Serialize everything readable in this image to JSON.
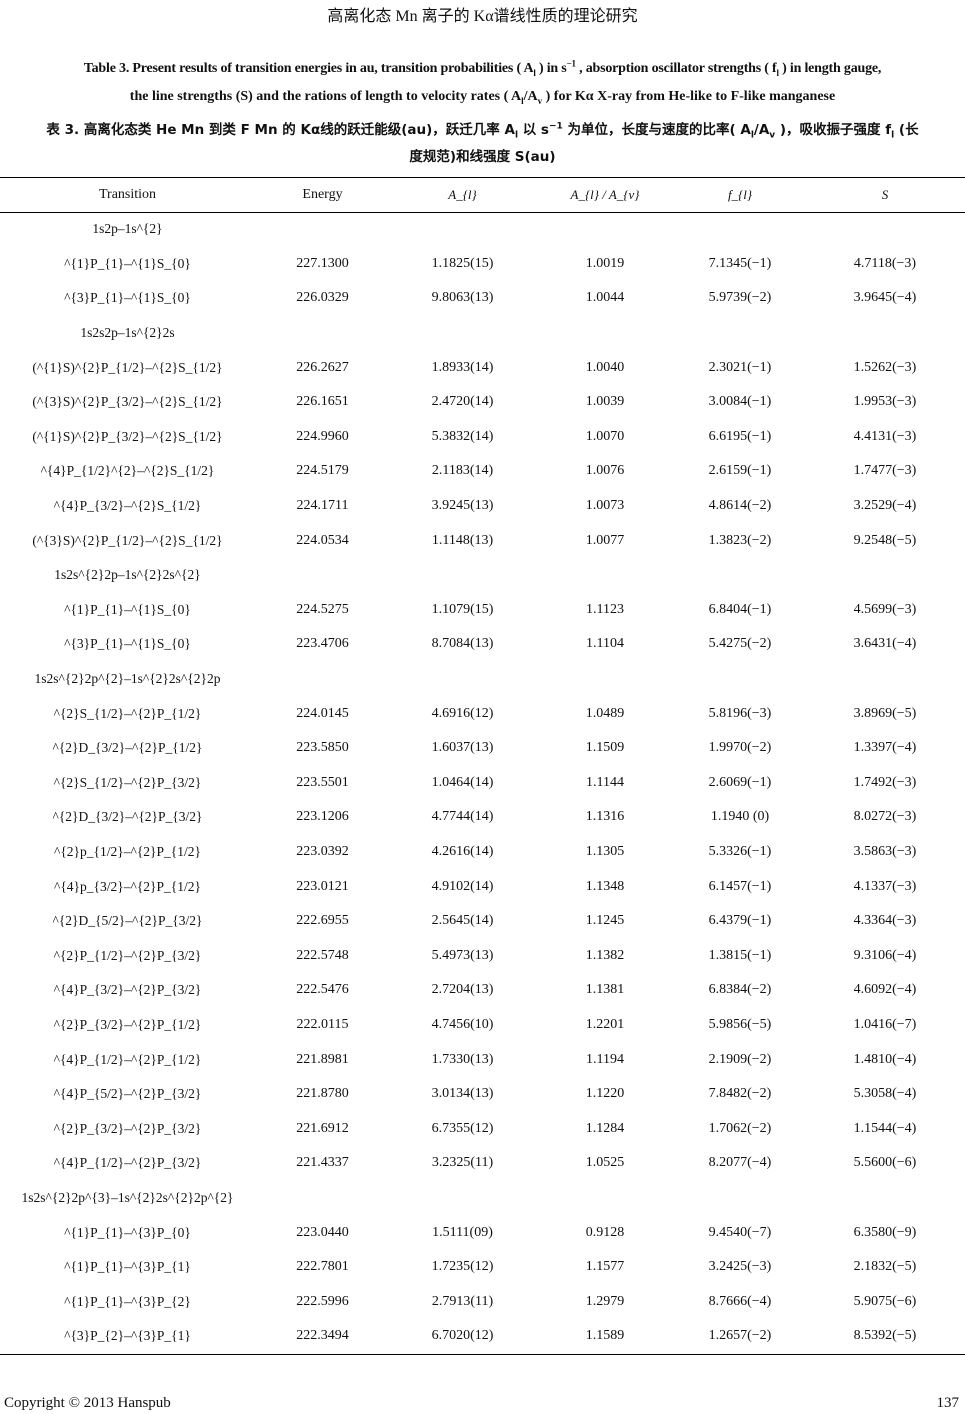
{
  "running_head": "高离化态 Mn 离子的 Kα谱线性质的理论研究",
  "caption": {
    "en_line1": "Table 3. Present results of transition energies in au, transition probabilities ( A_{l} ) in  s^{−1} , absorption oscillator strengths ( f_{l} ) in length gauge,",
    "en_line2": "the line strengths (S) and the rations of length to velocity rates ( A_{l}/A_{v} ) for Kα X-ray from He-like to F-like manganese",
    "zh_line1": "表 3. 高离化态类 He Mn 到类 F Mn 的 Kα线的跃迁能级(au)，跃迁几率 A_{l} 以 s^{−1} 为单位，长度与速度的比率( A_{l}/A_{v} )，吸收振子强度  f_{l} (长",
    "zh_line2": "度规范)和线强度 S(au)"
  },
  "table": {
    "headers": [
      "Transition",
      "Energy",
      "A_{l}",
      "A_{l} / A_{v}",
      "f_{l}",
      "S"
    ],
    "rows": [
      {
        "transition": "1s2p–1s^{2}",
        "group": true
      },
      {
        "transition": "^{1}P_{1}–^{1}S_{0}",
        "energy": "227.1300",
        "A": "1.1825(15)",
        "ratio": "1.0019",
        "f": "7.1345(−1)",
        "S": "4.7118(−3)"
      },
      {
        "transition": "^{3}P_{1}–^{1}S_{0}",
        "energy": "226.0329",
        "A": "9.8063(13)",
        "ratio": "1.0044",
        "f": "5.9739(−2)",
        "S": "3.9645(−4)"
      },
      {
        "transition": "1s2s2p–1s^{2}2s",
        "group": true
      },
      {
        "transition": "(^{1}S)^{2}P_{1/2}–^{2}S_{1/2}",
        "energy": "226.2627",
        "A": "1.8933(14)",
        "ratio": "1.0040",
        "f": "2.3021(−1)",
        "S": "1.5262(−3)"
      },
      {
        "transition": "(^{3}S)^{2}P_{3/2}–^{2}S_{1/2}",
        "energy": "226.1651",
        "A": "2.4720(14)",
        "ratio": "1.0039",
        "f": "3.0084(−1)",
        "S": "1.9953(−3)"
      },
      {
        "transition": "(^{1}S)^{2}P_{3/2}–^{2}S_{1/2}",
        "energy": "224.9960",
        "A": "5.3832(14)",
        "ratio": "1.0070",
        "f": "6.6195(−1)",
        "S": "4.4131(−3)"
      },
      {
        "transition": "^{4}P_{1/2}^{2}–^{2}S_{1/2}",
        "energy": "224.5179",
        "A": "2.1183(14)",
        "ratio": "1.0076",
        "f": "2.6159(−1)",
        "S": "1.7477(−3)"
      },
      {
        "transition": "^{4}P_{3/2}–^{2}S_{1/2}",
        "energy": "224.1711",
        "A": "3.9245(13)",
        "ratio": "1.0073",
        "f": "4.8614(−2)",
        "S": "3.2529(−4)"
      },
      {
        "transition": "(^{3}S)^{2}P_{1/2}–^{2}S_{1/2}",
        "energy": "224.0534",
        "A": "1.1148(13)",
        "ratio": "1.0077",
        "f": "1.3823(−2)",
        "S": "9.2548(−5)"
      },
      {
        "transition": "1s2s^{2}2p–1s^{2}2s^{2}",
        "group": true
      },
      {
        "transition": "^{1}P_{1}–^{1}S_{0}",
        "energy": "224.5275",
        "A": "1.1079(15)",
        "ratio": "1.1123",
        "f": "6.8404(−1)",
        "S": "4.5699(−3)"
      },
      {
        "transition": "^{3}P_{1}–^{1}S_{0}",
        "energy": "223.4706",
        "A": "8.7084(13)",
        "ratio": "1.1104",
        "f": "5.4275(−2)",
        "S": "3.6431(−4)"
      },
      {
        "transition": "1s2s^{2}2p^{2}–1s^{2}2s^{2}2p",
        "group": true
      },
      {
        "transition": "^{2}S_{1/2}–^{2}P_{1/2}",
        "energy": "224.0145",
        "A": "4.6916(12)",
        "ratio": "1.0489",
        "f": "5.8196(−3)",
        "S": "3.8969(−5)"
      },
      {
        "transition": "^{2}D_{3/2}–^{2}P_{1/2}",
        "energy": "223.5850",
        "A": "1.6037(13)",
        "ratio": "1.1509",
        "f": "1.9970(−2)",
        "S": "1.3397(−4)"
      },
      {
        "transition": "^{2}S_{1/2}–^{2}P_{3/2}",
        "energy": "223.5501",
        "A": "1.0464(14)",
        "ratio": "1.1144",
        "f": "2.6069(−1)",
        "S": "1.7492(−3)"
      },
      {
        "transition": "^{2}D_{3/2}–^{2}P_{3/2}",
        "energy": "223.1206",
        "A": "4.7744(14)",
        "ratio": "1.1316",
        "f": "1.1940 (0)",
        "S": "8.0272(−3)"
      },
      {
        "transition": "^{2}p_{1/2}–^{2}P_{1/2}",
        "energy": "223.0392",
        "A": "4.2616(14)",
        "ratio": "1.1305",
        "f": "5.3326(−1)",
        "S": "3.5863(−3)"
      },
      {
        "transition": "^{4}p_{3/2}–^{2}P_{1/2}",
        "energy": "223.0121",
        "A": "4.9102(14)",
        "ratio": "1.1348",
        "f": "6.1457(−1)",
        "S": "4.1337(−3)"
      },
      {
        "transition": "^{2}D_{5/2}–^{2}P_{3/2}",
        "energy": "222.6955",
        "A": "2.5645(14)",
        "ratio": "1.1245",
        "f": "6.4379(−1)",
        "S": "4.3364(−3)"
      },
      {
        "transition": "^{2}P_{1/2}–^{2}P_{3/2}",
        "energy": "222.5748",
        "A": "5.4973(13)",
        "ratio": "1.1382",
        "f": "1.3815(−1)",
        "S": "9.3106(−4)"
      },
      {
        "transition": "^{4}P_{3/2}–^{2}P_{3/2}",
        "energy": "222.5476",
        "A": "2.7204(13)",
        "ratio": "1.1381",
        "f": "6.8384(−2)",
        "S": "4.6092(−4)"
      },
      {
        "transition": "^{2}P_{3/2}–^{2}P_{1/2}",
        "energy": "222.0115",
        "A": "4.7456(10)",
        "ratio": "1.2201",
        "f": "5.9856(−5)",
        "S": "1.0416(−7)"
      },
      {
        "transition": "^{4}P_{1/2}–^{2}P_{1/2}",
        "energy": "221.8981",
        "A": "1.7330(13)",
        "ratio": "1.1194",
        "f": "2.1909(−2)",
        "S": "1.4810(−4)"
      },
      {
        "transition": "^{4}P_{5/2}–^{2}P_{3/2}",
        "energy": "221.8780",
        "A": "3.0134(13)",
        "ratio": "1.1220",
        "f": "7.8482(−2)",
        "S": "5.3058(−4)"
      },
      {
        "transition": "^{2}P_{3/2}–^{2}P_{3/2}",
        "energy": "221.6912",
        "A": "6.7355(12)",
        "ratio": "1.1284",
        "f": "1.7062(−2)",
        "S": "1.1544(−4)"
      },
      {
        "transition": "^{4}P_{1/2}–^{2}P_{3/2}",
        "energy": "221.4337",
        "A": "3.2325(11)",
        "ratio": "1.0525",
        "f": "8.2077(−4)",
        "S": "5.5600(−6)"
      },
      {
        "transition": "1s2s^{2}2p^{3}–1s^{2}2s^{2}2p^{2}",
        "group": true
      },
      {
        "transition": "^{1}P_{1}–^{3}P_{0}",
        "energy": "223.0440",
        "A": "1.5111(09)",
        "ratio": "0.9128",
        "f": "9.4540(−7)",
        "S": "6.3580(−9)"
      },
      {
        "transition": "^{1}P_{1}–^{3}P_{1}",
        "energy": "222.7801",
        "A": "1.7235(12)",
        "ratio": "1.1577",
        "f": "3.2425(−3)",
        "S": "2.1832(−5)"
      },
      {
        "transition": "^{1}P_{1}–^{3}P_{2}",
        "energy": "222.5996",
        "A": "2.7913(11)",
        "ratio": "1.2979",
        "f": "8.7666(−4)",
        "S": "5.9075(−6)"
      },
      {
        "transition": "^{3}P_{2}–^{3}P_{1}",
        "energy": "222.3494",
        "A": "6.7020(12)",
        "ratio": "1.1589",
        "f": "1.2657(−2)",
        "S": "8.5392(−5)"
      }
    ]
  },
  "footer": {
    "copyright": "Copyright © 2013 Hanspub",
    "page_number": "137"
  }
}
